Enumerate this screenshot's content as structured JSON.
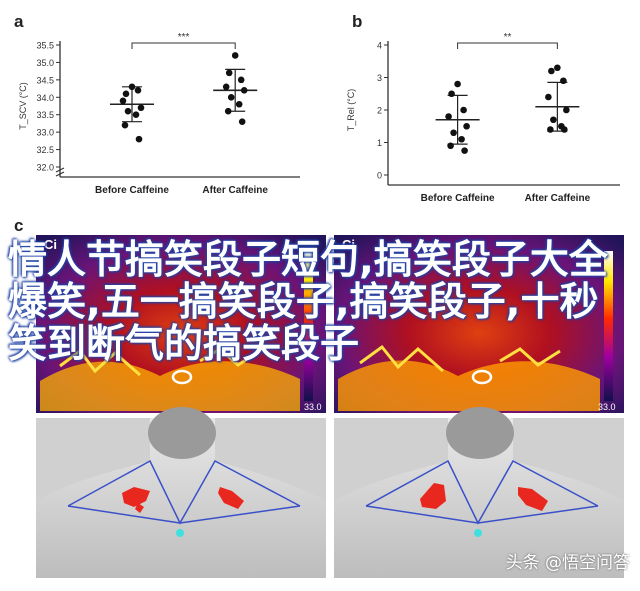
{
  "panels": {
    "a": "a",
    "b": "b",
    "c": "c",
    "ci_left": "Ci",
    "ci_right": "Ci"
  },
  "overlay_text": "情人节搞笑段子短句,搞笑段子大全 爆笑,五一搞笑段子,搞笑段子,十秒笑到断气的搞笑段子",
  "watermark": "头条 @悟空问答",
  "colorbar_min": "33.0",
  "chart_data": [
    {
      "type": "scatter",
      "panel": "a",
      "xlabel": "",
      "ylabel": "T_SCV (°C)",
      "categories": [
        "Before Caffeine",
        "After Caffeine"
      ],
      "ylim": [
        32.0,
        35.5
      ],
      "yticks": [
        "32.0",
        "32.5",
        "33.0",
        "33.5",
        "34.0",
        "34.5",
        "35.0",
        "35.5"
      ],
      "axis_break": true,
      "significance": "***",
      "series": [
        {
          "values": [
            34.3,
            34.1,
            34.2,
            33.9,
            33.7,
            33.6,
            33.5,
            33.2,
            32.8
          ],
          "mean": 33.8,
          "sd": 0.5
        },
        {
          "values": [
            35.2,
            34.7,
            34.5,
            34.3,
            34.2,
            34.0,
            33.8,
            33.6,
            33.3
          ],
          "mean": 34.2,
          "sd": 0.6
        }
      ]
    },
    {
      "type": "scatter",
      "panel": "b",
      "xlabel": "",
      "ylabel": "T_Rel (°C)",
      "categories": [
        "Before Caffeine",
        "After Caffeine"
      ],
      "ylim": [
        0,
        4
      ],
      "yticks": [
        "0",
        "1",
        "2",
        "3",
        "4"
      ],
      "significance": "**",
      "series": [
        {
          "values": [
            2.8,
            2.5,
            2.0,
            1.8,
            1.5,
            1.3,
            1.1,
            0.9,
            0.75
          ],
          "mean": 1.7,
          "sd": 0.75
        },
        {
          "values": [
            3.3,
            3.2,
            2.9,
            2.4,
            2.0,
            1.7,
            1.5,
            1.4,
            1.4
          ],
          "mean": 2.1,
          "sd": 0.75
        }
      ]
    }
  ]
}
